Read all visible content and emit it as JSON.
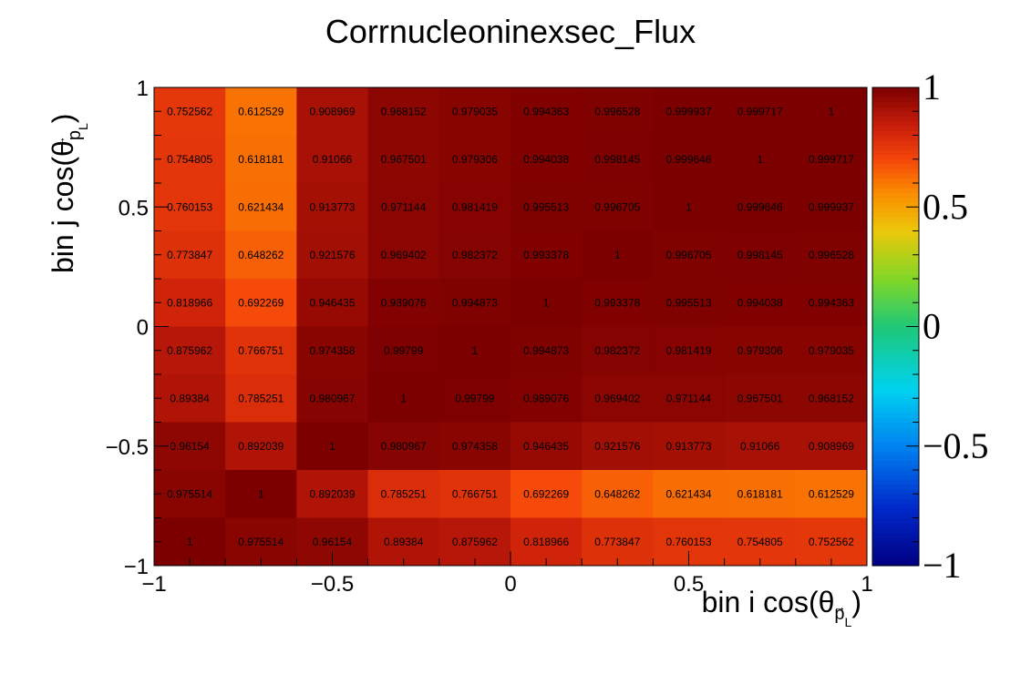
{
  "chart_data": {
    "type": "heatmap",
    "title": "Corrnucleoninexsec_Flux",
    "xlabel_main": "bin i cos(θ",
    "xlabel_sub": "p",
    "xlabel_subsub": "L",
    "xlabel_close": ")",
    "ylabel_main": "bin j cos(θ",
    "ylabel_sub": "p",
    "ylabel_subsub": "L",
    "ylabel_close": ")",
    "xlim": [
      -1,
      1
    ],
    "ylim": [
      -1,
      1
    ],
    "zlim": [
      -1,
      1
    ],
    "x_tick_labels": [
      "−1",
      "−0.5",
      "0",
      "0.5",
      "1"
    ],
    "y_tick_labels": [
      "−1",
      "−0.5",
      "0",
      "0.5",
      "1"
    ],
    "z_tick_labels": [
      "−1",
      "−0.5",
      "0",
      "0.5",
      "1"
    ],
    "x_tick_values": [
      -1,
      -0.5,
      0,
      0.5,
      1
    ],
    "y_tick_values": [
      -1,
      -0.5,
      0,
      0.5,
      1
    ],
    "z_tick_values": [
      -1,
      -0.5,
      0,
      0.5,
      1
    ],
    "n_bins_x": 10,
    "n_bins_y": 10,
    "colormap": "ROOT rainbow (dark blue → cyan → green → yellow → red → dark red)",
    "rows_top_to_bottom": [
      [
        "0.752562",
        "0.612529",
        "0.908969",
        "0.968152",
        "0.979035",
        "0.994363",
        "0.996528",
        "0.999937",
        "0.999717",
        "1"
      ],
      [
        "0.754805",
        "0.618181",
        "0.91066",
        "0.967501",
        "0.979306",
        "0.994038",
        "0.998145",
        "0.999646",
        "1",
        "0.999717"
      ],
      [
        "0.760153",
        "0.621434",
        "0.913773",
        "0.971144",
        "0.981419",
        "0.995513",
        "0.996705",
        "1",
        "0.999646",
        "0.999937"
      ],
      [
        "0.773847",
        "0.648262",
        "0.921576",
        "0.969402",
        "0.982372",
        "0.993378",
        "1",
        "0.996705",
        "0.998145",
        "0.996528"
      ],
      [
        "0.818966",
        "0.692269",
        "0.946435",
        "0.989076",
        "0.994873",
        "1",
        "0.993378",
        "0.995513",
        "0.994038",
        "0.994363"
      ],
      [
        "0.875962",
        "0.766751",
        "0.974358",
        "0.99799",
        "1",
        "0.994873",
        "0.982372",
        "0.981419",
        "0.979306",
        "0.979035"
      ],
      [
        "0.89384",
        "0.785251",
        "0.980967",
        "1",
        "0.99799",
        "0.989076",
        "0.969402",
        "0.971144",
        "0.967501",
        "0.968152"
      ],
      [
        "0.96154",
        "0.892039",
        "1",
        "0.980967",
        "0.974358",
        "0.946435",
        "0.921576",
        "0.913773",
        "0.91066",
        "0.908969"
      ],
      [
        "0.975514",
        "1",
        "0.892039",
        "0.785251",
        "0.766751",
        "0.692269",
        "0.648262",
        "0.621434",
        "0.618181",
        "0.612529"
      ],
      [
        "1",
        "0.975514",
        "0.96154",
        "0.89384",
        "0.875962",
        "0.818966",
        "0.773847",
        "0.760153",
        "0.754805",
        "0.752562"
      ]
    ]
  }
}
